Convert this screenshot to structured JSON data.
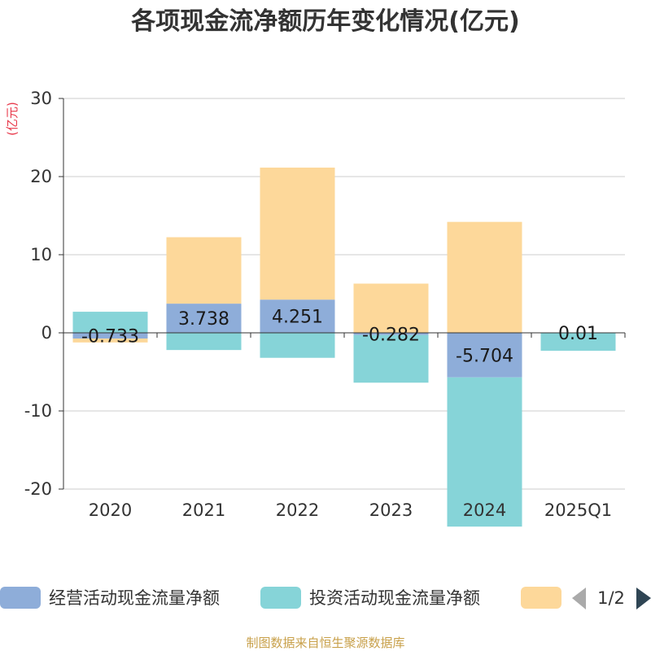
{
  "chart_data": {
    "type": "bar",
    "stacked": true,
    "title": "各项现金流净额历年变化情况(亿元)",
    "ylabel": "(亿元)",
    "xlabel": "",
    "categories": [
      "2020",
      "2021",
      "2022",
      "2023",
      "2024",
      "2025Q1"
    ],
    "ylim": [
      -20,
      30
    ],
    "yticks": [
      30,
      20,
      10,
      0,
      -10,
      -20
    ],
    "ytick_labels": [
      "30",
      "20",
      "10",
      "0",
      "-10",
      "-20"
    ],
    "series": [
      {
        "name": "经营活动现金流量净额",
        "color": "#8eadd9",
        "values": [
          -0.733,
          3.738,
          4.251,
          -0.282,
          -5.704,
          0.01
        ]
      },
      {
        "name": "投资活动现金流量净额",
        "color": "#86d4d8",
        "values": [
          2.7,
          -2.2,
          -3.2,
          -6.1,
          -19.1,
          -2.3
        ]
      },
      {
        "name": "",
        "color": "#fdd89a",
        "values": [
          -0.5,
          8.5,
          16.9,
          6.3,
          14.2,
          0.0
        ]
      }
    ],
    "data_labels": [
      "-0.733",
      "3.738",
      "4.251",
      "-0.282",
      "-5.704",
      "0.01"
    ],
    "legend_position": "bottom",
    "grid": true
  },
  "legend": {
    "items": [
      "经营活动现金流量净额",
      "投资活动现金流量净额",
      ""
    ],
    "page": "1/2"
  },
  "colors": {
    "unit": "#e8384a",
    "source": "#c8a04a",
    "axis": "#333333",
    "grid": "#cccccc",
    "pager_active": "#2f4554",
    "pager_inactive": "#aaaaaa"
  },
  "source": "制图数据来自恒生聚源数据库"
}
